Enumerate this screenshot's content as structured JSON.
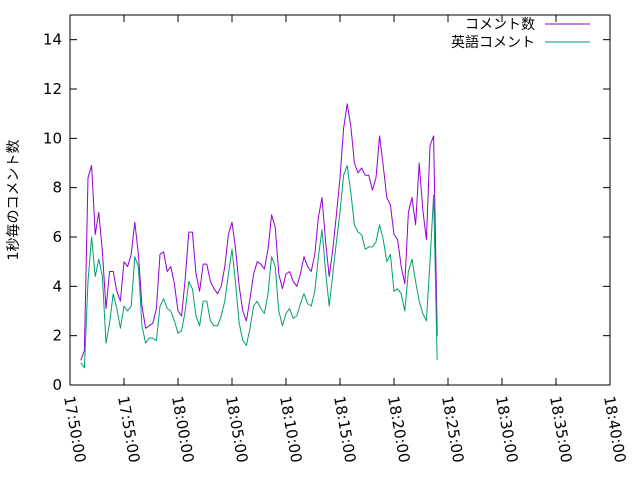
{
  "chart_data": {
    "type": "line",
    "title": "",
    "xlabel": "",
    "ylabel": "1秒毎のコメント数",
    "xlim": [
      "17:50:00",
      "18:40:00"
    ],
    "ylim": [
      0,
      15
    ],
    "x_tick_labels": [
      "17:50:00",
      "17:55:00",
      "18:00:00",
      "18:05:00",
      "18:10:00",
      "18:15:00",
      "18:20:00",
      "18:25:00",
      "18:30:00",
      "18:35:00",
      "18:40:00"
    ],
    "y_tick_labels": [
      "0",
      "2",
      "4",
      "6",
      "8",
      "10",
      "12",
      "14"
    ],
    "y_ticks": [
      0,
      2,
      4,
      6,
      8,
      10,
      12,
      14
    ],
    "legend_position": "top-right",
    "grid": false,
    "series": [
      {
        "name": "コメント数",
        "color": "#9400d3",
        "points": [
          [
            "17:51:00",
            1.0
          ],
          [
            "17:51:20",
            1.4
          ],
          [
            "17:51:40",
            8.4
          ],
          [
            "17:52:00",
            8.9
          ],
          [
            "17:52:20",
            6.1
          ],
          [
            "17:52:40",
            7.0
          ],
          [
            "17:53:00",
            5.4
          ],
          [
            "17:53:20",
            3.1
          ],
          [
            "17:53:40",
            4.6
          ],
          [
            "17:54:00",
            4.6
          ],
          [
            "17:54:20",
            3.8
          ],
          [
            "17:54:40",
            3.4
          ],
          [
            "17:55:00",
            5.0
          ],
          [
            "17:55:20",
            4.8
          ],
          [
            "17:55:40",
            5.3
          ],
          [
            "17:56:00",
            6.6
          ],
          [
            "17:56:20",
            5.3
          ],
          [
            "17:56:40",
            3.2
          ],
          [
            "17:57:00",
            2.3
          ],
          [
            "17:57:20",
            2.4
          ],
          [
            "17:57:40",
            2.5
          ],
          [
            "17:58:00",
            3.1
          ],
          [
            "17:58:20",
            5.3
          ],
          [
            "17:58:40",
            5.4
          ],
          [
            "17:59:00",
            4.6
          ],
          [
            "17:59:20",
            4.8
          ],
          [
            "17:59:40",
            4.1
          ],
          [
            "18:00:00",
            3.0
          ],
          [
            "18:00:20",
            2.8
          ],
          [
            "18:00:40",
            4.3
          ],
          [
            "18:01:00",
            6.2
          ],
          [
            "18:01:20",
            6.2
          ],
          [
            "18:01:40",
            4.5
          ],
          [
            "18:02:00",
            3.8
          ],
          [
            "18:02:20",
            4.9
          ],
          [
            "18:02:40",
            4.9
          ],
          [
            "18:03:00",
            4.2
          ],
          [
            "18:03:20",
            3.9
          ],
          [
            "18:03:40",
            3.7
          ],
          [
            "18:04:00",
            4.0
          ],
          [
            "18:04:20",
            4.8
          ],
          [
            "18:04:40",
            6.1
          ],
          [
            "18:05:00",
            6.6
          ],
          [
            "18:05:20",
            5.5
          ],
          [
            "18:05:40",
            4.0
          ],
          [
            "18:06:00",
            3.0
          ],
          [
            "18:06:20",
            2.6
          ],
          [
            "18:06:40",
            3.5
          ],
          [
            "18:07:00",
            4.5
          ],
          [
            "18:07:20",
            5.0
          ],
          [
            "18:07:40",
            4.9
          ],
          [
            "18:08:00",
            4.7
          ],
          [
            "18:08:20",
            5.5
          ],
          [
            "18:08:40",
            6.9
          ],
          [
            "18:09:00",
            6.4
          ],
          [
            "18:09:20",
            4.5
          ],
          [
            "18:09:40",
            3.9
          ],
          [
            "18:10:00",
            4.5
          ],
          [
            "18:10:20",
            4.6
          ],
          [
            "18:10:40",
            4.2
          ],
          [
            "18:11:00",
            4.0
          ],
          [
            "18:11:20",
            4.5
          ],
          [
            "18:11:40",
            5.2
          ],
          [
            "18:12:00",
            4.8
          ],
          [
            "18:12:20",
            4.6
          ],
          [
            "18:12:40",
            5.3
          ],
          [
            "18:13:00",
            6.8
          ],
          [
            "18:13:20",
            7.6
          ],
          [
            "18:13:40",
            5.8
          ],
          [
            "18:14:00",
            4.4
          ],
          [
            "18:14:20",
            5.5
          ],
          [
            "18:14:40",
            6.9
          ],
          [
            "18:15:00",
            8.4
          ],
          [
            "18:15:20",
            10.4
          ],
          [
            "18:15:40",
            11.4
          ],
          [
            "18:16:00",
            10.5
          ],
          [
            "18:16:20",
            9.0
          ],
          [
            "18:16:40",
            8.6
          ],
          [
            "18:17:00",
            8.8
          ],
          [
            "18:17:20",
            8.5
          ],
          [
            "18:17:40",
            8.5
          ],
          [
            "18:18:00",
            7.9
          ],
          [
            "18:18:20",
            8.4
          ],
          [
            "18:18:40",
            10.1
          ],
          [
            "18:19:00",
            8.9
          ],
          [
            "18:19:20",
            7.6
          ],
          [
            "18:19:40",
            7.3
          ],
          [
            "18:20:00",
            6.1
          ],
          [
            "18:20:20",
            5.9
          ],
          [
            "18:20:40",
            4.8
          ],
          [
            "18:21:00",
            4.1
          ],
          [
            "18:21:20",
            7.0
          ],
          [
            "18:21:40",
            7.6
          ],
          [
            "18:22:00",
            6.5
          ],
          [
            "18:22:20",
            9.0
          ],
          [
            "18:22:40",
            7.1
          ],
          [
            "18:23:00",
            5.9
          ],
          [
            "18:23:20",
            9.7
          ],
          [
            "18:23:40",
            10.1
          ],
          [
            "18:24:00",
            2.0
          ]
        ]
      },
      {
        "name": "英語コメント",
        "color": "#009e73",
        "points": [
          [
            "17:51:00",
            0.9
          ],
          [
            "17:51:20",
            0.7
          ],
          [
            "17:51:40",
            4.2
          ],
          [
            "17:52:00",
            6.0
          ],
          [
            "17:52:20",
            4.4
          ],
          [
            "17:52:40",
            5.1
          ],
          [
            "17:53:00",
            4.4
          ],
          [
            "17:53:20",
            1.7
          ],
          [
            "17:53:40",
            2.5
          ],
          [
            "17:54:00",
            3.7
          ],
          [
            "17:54:20",
            3.1
          ],
          [
            "17:54:40",
            2.3
          ],
          [
            "17:55:00",
            3.2
          ],
          [
            "17:55:20",
            3.0
          ],
          [
            "17:55:40",
            3.2
          ],
          [
            "17:56:00",
            5.2
          ],
          [
            "17:56:20",
            4.8
          ],
          [
            "17:56:40",
            2.4
          ],
          [
            "17:57:00",
            1.7
          ],
          [
            "17:57:20",
            1.9
          ],
          [
            "17:57:40",
            1.9
          ],
          [
            "17:58:00",
            1.8
          ],
          [
            "17:58:20",
            3.2
          ],
          [
            "17:58:40",
            3.5
          ],
          [
            "17:59:00",
            3.1
          ],
          [
            "17:59:20",
            3.0
          ],
          [
            "17:59:40",
            2.6
          ],
          [
            "18:00:00",
            2.1
          ],
          [
            "18:00:20",
            2.2
          ],
          [
            "18:00:40",
            3.0
          ],
          [
            "18:01:00",
            4.2
          ],
          [
            "18:01:20",
            3.9
          ],
          [
            "18:01:40",
            2.8
          ],
          [
            "18:02:00",
            2.4
          ],
          [
            "18:02:20",
            3.4
          ],
          [
            "18:02:40",
            3.4
          ],
          [
            "18:03:00",
            2.6
          ],
          [
            "18:03:20",
            2.4
          ],
          [
            "18:03:40",
            2.4
          ],
          [
            "18:04:00",
            2.8
          ],
          [
            "18:04:20",
            3.4
          ],
          [
            "18:04:40",
            4.5
          ],
          [
            "18:05:00",
            5.5
          ],
          [
            "18:05:20",
            4.1
          ],
          [
            "18:05:40",
            2.5
          ],
          [
            "18:06:00",
            1.8
          ],
          [
            "18:06:20",
            1.6
          ],
          [
            "18:06:40",
            2.3
          ],
          [
            "18:07:00",
            3.2
          ],
          [
            "18:07:20",
            3.4
          ],
          [
            "18:07:40",
            3.1
          ],
          [
            "18:08:00",
            2.9
          ],
          [
            "18:08:20",
            3.7
          ],
          [
            "18:08:40",
            5.2
          ],
          [
            "18:09:00",
            4.8
          ],
          [
            "18:09:20",
            3.0
          ],
          [
            "18:09:40",
            2.4
          ],
          [
            "18:10:00",
            2.9
          ],
          [
            "18:10:20",
            3.1
          ],
          [
            "18:10:40",
            2.7
          ],
          [
            "18:11:00",
            2.8
          ],
          [
            "18:11:20",
            3.3
          ],
          [
            "18:11:40",
            3.7
          ],
          [
            "18:12:00",
            3.3
          ],
          [
            "18:12:20",
            3.2
          ],
          [
            "18:12:40",
            3.8
          ],
          [
            "18:13:00",
            5.2
          ],
          [
            "18:13:20",
            6.3
          ],
          [
            "18:13:40",
            4.6
          ],
          [
            "18:14:00",
            3.2
          ],
          [
            "18:14:20",
            4.5
          ],
          [
            "18:14:40",
            5.8
          ],
          [
            "18:15:00",
            7.0
          ],
          [
            "18:15:20",
            8.5
          ],
          [
            "18:15:40",
            8.9
          ],
          [
            "18:16:00",
            7.8
          ],
          [
            "18:16:20",
            6.5
          ],
          [
            "18:16:40",
            6.2
          ],
          [
            "18:17:00",
            6.1
          ],
          [
            "18:17:20",
            5.5
          ],
          [
            "18:17:40",
            5.6
          ],
          [
            "18:18:00",
            5.6
          ],
          [
            "18:18:20",
            5.8
          ],
          [
            "18:18:40",
            6.5
          ],
          [
            "18:19:00",
            5.9
          ],
          [
            "18:19:20",
            5.0
          ],
          [
            "18:19:40",
            5.3
          ],
          [
            "18:20:00",
            3.8
          ],
          [
            "18:20:20",
            3.9
          ],
          [
            "18:20:40",
            3.7
          ],
          [
            "18:21:00",
            3.0
          ],
          [
            "18:21:20",
            4.6
          ],
          [
            "18:21:40",
            5.1
          ],
          [
            "18:22:00",
            4.2
          ],
          [
            "18:22:20",
            3.4
          ],
          [
            "18:22:40",
            2.9
          ],
          [
            "18:23:00",
            2.6
          ],
          [
            "18:23:20",
            5.0
          ],
          [
            "18:23:40",
            7.7
          ],
          [
            "18:24:00",
            1.0
          ]
        ]
      }
    ]
  }
}
